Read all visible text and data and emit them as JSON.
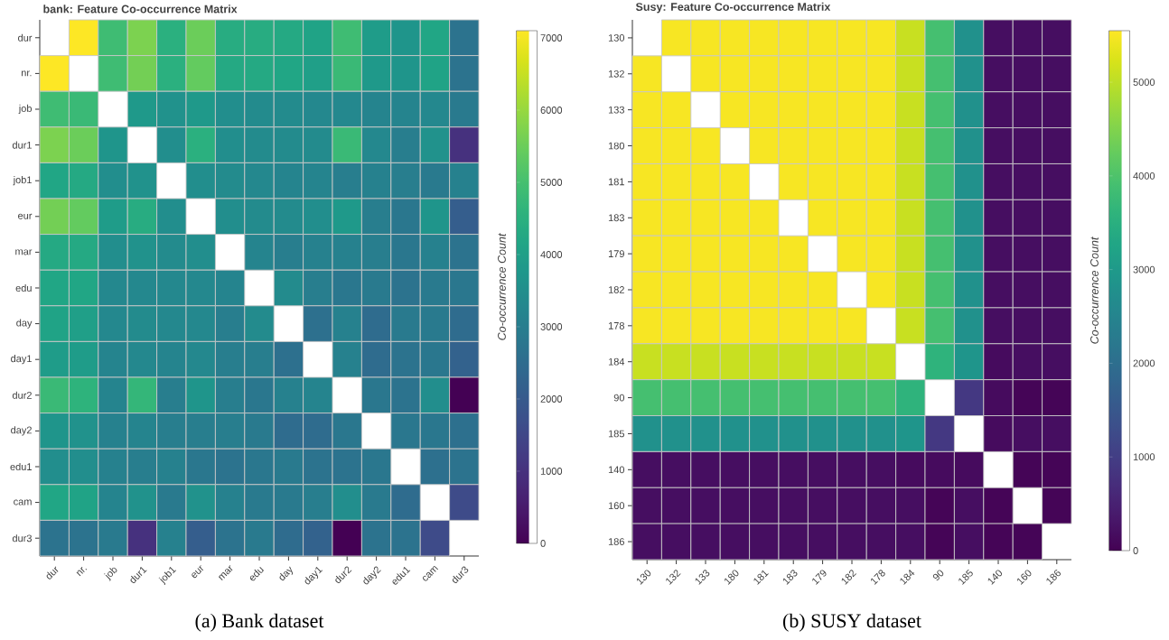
{
  "chart_data": [
    {
      "type": "heatmap",
      "title": "bank: Feature Co-occurrence Matrix",
      "categories": [
        "dur",
        "nr.",
        "job",
        "dur1",
        "job1",
        "eur",
        "mar",
        "edu",
        "day",
        "day1",
        "dur2",
        "day2",
        "edu1",
        "cam",
        "dur3"
      ],
      "y_categories": [
        "dur",
        "nr.",
        "job",
        "dur1",
        "job1",
        "eur",
        "mar",
        "edu",
        "day",
        "day1",
        "dur2",
        "day2",
        "edu1",
        "cam",
        "dur3"
      ],
      "cells": [
        [
          null,
          7100,
          4900,
          5700,
          4500,
          5500,
          4400,
          4400,
          4300,
          4100,
          4900,
          3900,
          3700,
          4200,
          2700
        ],
        [
          7100,
          null,
          4900,
          5600,
          4500,
          5400,
          4300,
          4300,
          4200,
          4000,
          4800,
          3800,
          3700,
          4100,
          2700
        ],
        [
          4900,
          4800,
          null,
          3800,
          3600,
          3800,
          3500,
          3400,
          3400,
          3300,
          3300,
          3200,
          3200,
          3300,
          2900
        ],
        [
          5700,
          5500,
          3700,
          null,
          3500,
          4500,
          3500,
          3400,
          3400,
          3400,
          4800,
          3300,
          3000,
          3600,
          1000
        ],
        [
          4200,
          4300,
          3500,
          3600,
          null,
          3500,
          3400,
          3300,
          3200,
          3200,
          3000,
          3100,
          3000,
          2900,
          3100
        ],
        [
          5600,
          5400,
          3900,
          4400,
          3500,
          null,
          3500,
          3400,
          3400,
          3500,
          3800,
          3000,
          2800,
          3700,
          2100
        ],
        [
          4300,
          4300,
          3500,
          3600,
          3400,
          3500,
          null,
          3200,
          3000,
          3100,
          3100,
          3000,
          2800,
          3100,
          2700
        ],
        [
          4200,
          4200,
          3300,
          3300,
          3300,
          3300,
          3200,
          null,
          3400,
          3000,
          2800,
          2900,
          2700,
          2900,
          2800
        ],
        [
          4100,
          4000,
          3300,
          3400,
          3300,
          3300,
          3000,
          3400,
          null,
          2600,
          3100,
          2500,
          2900,
          2900,
          2500
        ],
        [
          3900,
          3900,
          3200,
          3300,
          3200,
          3300,
          3000,
          3000,
          2600,
          null,
          3100,
          2500,
          2700,
          2800,
          2200
        ],
        [
          4800,
          4600,
          3200,
          4700,
          3000,
          3700,
          3000,
          2800,
          3100,
          3200,
          null,
          2800,
          2700,
          3500,
          0
        ],
        [
          3700,
          3600,
          3100,
          3200,
          3000,
          3000,
          3000,
          2900,
          2500,
          2500,
          2800,
          null,
          2800,
          2800,
          2600
        ],
        [
          3500,
          3500,
          3100,
          3000,
          3100,
          2800,
          2700,
          2800,
          2900,
          2700,
          2700,
          2800,
          null,
          2600,
          2700
        ],
        [
          4200,
          4100,
          3200,
          3600,
          2900,
          3600,
          3100,
          2900,
          2900,
          3000,
          3500,
          2900,
          2500,
          null,
          1600
        ],
        [
          2700,
          2700,
          2900,
          1000,
          3100,
          2100,
          2700,
          2900,
          2500,
          2200,
          0,
          2700,
          2700,
          1600,
          null
        ]
      ],
      "clim": [
        0,
        7100
      ],
      "cticks": [
        0,
        1000,
        2000,
        3000,
        4000,
        5000,
        6000,
        7000
      ],
      "clabel": "Co-occurrence Count",
      "annotations": [
        "(a) Bank dataset"
      ]
    },
    {
      "type": "heatmap",
      "title": "Susy: Feature Co-occurrence Matrix",
      "categories": [
        "130",
        "132",
        "133",
        "180",
        "181",
        "183",
        "179",
        "182",
        "178",
        "184",
        "90",
        "185",
        "140",
        "160",
        "186"
      ],
      "y_categories": [
        "130",
        "132",
        "133",
        "180",
        "181",
        "183",
        "179",
        "182",
        "178",
        "184",
        "90",
        "185",
        "140",
        "160",
        "186"
      ],
      "cells": [
        [
          null,
          5500,
          5500,
          5500,
          5500,
          5500,
          5500,
          5500,
          5500,
          5100,
          3900,
          2800,
          200,
          200,
          200
        ],
        [
          5500,
          null,
          5500,
          5500,
          5500,
          5500,
          5500,
          5500,
          5500,
          5100,
          3900,
          2800,
          200,
          200,
          200
        ],
        [
          5500,
          5500,
          null,
          5500,
          5500,
          5500,
          5500,
          5500,
          5500,
          5100,
          3900,
          2800,
          200,
          200,
          200
        ],
        [
          5500,
          5500,
          5500,
          null,
          5500,
          5500,
          5500,
          5500,
          5500,
          5100,
          3900,
          2800,
          200,
          200,
          200
        ],
        [
          5500,
          5500,
          5500,
          5500,
          null,
          5500,
          5500,
          5500,
          5500,
          5100,
          3900,
          2800,
          200,
          200,
          200
        ],
        [
          5500,
          5500,
          5500,
          5500,
          5500,
          null,
          5500,
          5500,
          5500,
          5100,
          3900,
          2800,
          200,
          200,
          200
        ],
        [
          5500,
          5500,
          5500,
          5500,
          5500,
          5500,
          null,
          5500,
          5500,
          5100,
          3900,
          2800,
          200,
          200,
          200
        ],
        [
          5500,
          5500,
          5500,
          5500,
          5500,
          5500,
          5500,
          null,
          5500,
          5100,
          3900,
          2800,
          200,
          200,
          200
        ],
        [
          5500,
          5500,
          5500,
          5500,
          5500,
          5500,
          5500,
          5500,
          null,
          5100,
          3900,
          2800,
          200,
          200,
          200
        ],
        [
          5100,
          5100,
          5100,
          5100,
          5100,
          5100,
          5100,
          5100,
          5100,
          null,
          3600,
          2900,
          150,
          200,
          200
        ],
        [
          3900,
          3900,
          3900,
          3900,
          3900,
          3900,
          3900,
          3900,
          3900,
          3600,
          null,
          900,
          150,
          50,
          50
        ],
        [
          2800,
          2800,
          2800,
          2800,
          2800,
          2800,
          2800,
          2800,
          2800,
          2900,
          900,
          null,
          150,
          200,
          200
        ],
        [
          200,
          200,
          200,
          200,
          200,
          200,
          200,
          200,
          200,
          150,
          150,
          150,
          null,
          50,
          50
        ],
        [
          200,
          200,
          200,
          200,
          200,
          200,
          200,
          200,
          200,
          200,
          50,
          200,
          50,
          null,
          50
        ],
        [
          200,
          200,
          200,
          200,
          200,
          200,
          200,
          200,
          200,
          200,
          50,
          200,
          50,
          50,
          null
        ]
      ],
      "clim": [
        0,
        5550
      ],
      "cticks": [
        0,
        1000,
        2000,
        3000,
        4000,
        5000
      ],
      "clabel": "Co-occurrence Count",
      "annotations": [
        "(b) SUSY dataset"
      ]
    }
  ]
}
